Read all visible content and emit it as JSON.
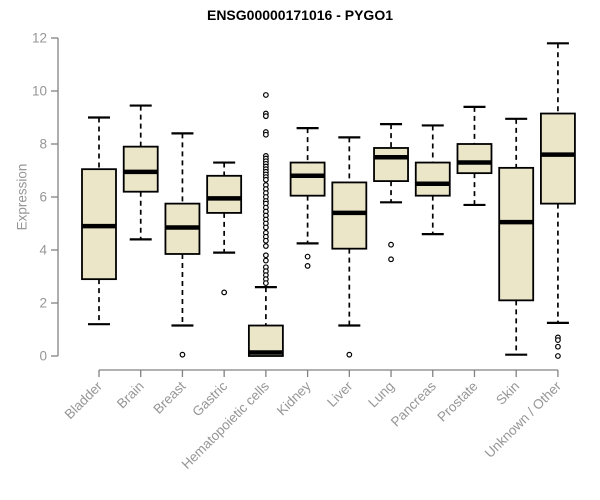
{
  "chart_data": {
    "type": "boxplot",
    "title": "ENSG00000171016 - PYGO1",
    "ylabel": "Expression",
    "ylim": [
      0,
      12
    ],
    "yticks": [
      0,
      2,
      4,
      6,
      8,
      10,
      12
    ],
    "grid": false,
    "legend": "none",
    "categories": [
      "Bladder",
      "Brain",
      "Breast",
      "Gastric",
      "Hematopoietic cells",
      "Kidney",
      "Liver",
      "Lung",
      "Pancreas",
      "Prostate",
      "Skin",
      "Unknown / Other"
    ],
    "series": [
      {
        "name": "Bladder",
        "low": 1.2,
        "q1": 2.9,
        "median": 4.9,
        "q3": 7.05,
        "high": 9.0,
        "outliers": []
      },
      {
        "name": "Brain",
        "low": 4.4,
        "q1": 6.2,
        "median": 6.95,
        "q3": 7.9,
        "high": 9.45,
        "outliers": []
      },
      {
        "name": "Breast",
        "low": 1.15,
        "q1": 3.85,
        "median": 4.85,
        "q3": 5.75,
        "high": 8.4,
        "outliers": [
          0.05
        ]
      },
      {
        "name": "Gastric",
        "low": 3.9,
        "q1": 5.4,
        "median": 5.95,
        "q3": 6.8,
        "high": 7.3,
        "outliers": [
          2.4
        ]
      },
      {
        "name": "Hematopoietic cells",
        "low": 0.0,
        "q1": 0.0,
        "median": 0.13,
        "q3": 1.15,
        "high": 2.6,
        "outliers": [
          9.85,
          9.15,
          9.05,
          8.45,
          8.35,
          7.55,
          7.45,
          7.35,
          7.25,
          7.15,
          7.05,
          6.95,
          6.85,
          6.75,
          6.65,
          6.45,
          6.3,
          6.15,
          6.0,
          5.85,
          5.75,
          5.6,
          5.45,
          5.3,
          5.15,
          5.0,
          4.85,
          4.65,
          4.5,
          4.35,
          4.15,
          3.8,
          3.6,
          3.35,
          3.2,
          3.05,
          2.9,
          2.75
        ]
      },
      {
        "name": "Kidney",
        "low": 4.25,
        "q1": 6.05,
        "median": 6.8,
        "q3": 7.3,
        "high": 8.6,
        "outliers": [
          3.75,
          3.4
        ]
      },
      {
        "name": "Liver",
        "low": 1.15,
        "q1": 4.05,
        "median": 5.4,
        "q3": 6.55,
        "high": 8.25,
        "outliers": [
          0.05
        ]
      },
      {
        "name": "Lung",
        "low": 5.8,
        "q1": 6.6,
        "median": 7.5,
        "q3": 7.85,
        "high": 8.75,
        "outliers": [
          4.2,
          3.65
        ]
      },
      {
        "name": "Pancreas",
        "low": 4.6,
        "q1": 6.05,
        "median": 6.5,
        "q3": 7.3,
        "high": 8.7,
        "outliers": []
      },
      {
        "name": "Prostate",
        "low": 5.7,
        "q1": 6.9,
        "median": 7.3,
        "q3": 8.0,
        "high": 9.4,
        "outliers": []
      },
      {
        "name": "Skin",
        "low": 0.05,
        "q1": 2.1,
        "median": 5.05,
        "q3": 7.1,
        "high": 8.95,
        "outliers": []
      },
      {
        "name": "Unknown / Other",
        "low": 1.25,
        "q1": 5.75,
        "median": 7.6,
        "q3": 9.15,
        "high": 11.8,
        "outliers": [
          0.7,
          0.6,
          0.35,
          0.0
        ]
      }
    ],
    "colors": {
      "box_fill": "#ece6c8",
      "box_stroke": "#000000",
      "whisker": "#000000",
      "median": "#000000",
      "axis": "#828282",
      "tick_text": "#969696",
      "title_text": "#000000",
      "background": "#ffffff"
    }
  }
}
